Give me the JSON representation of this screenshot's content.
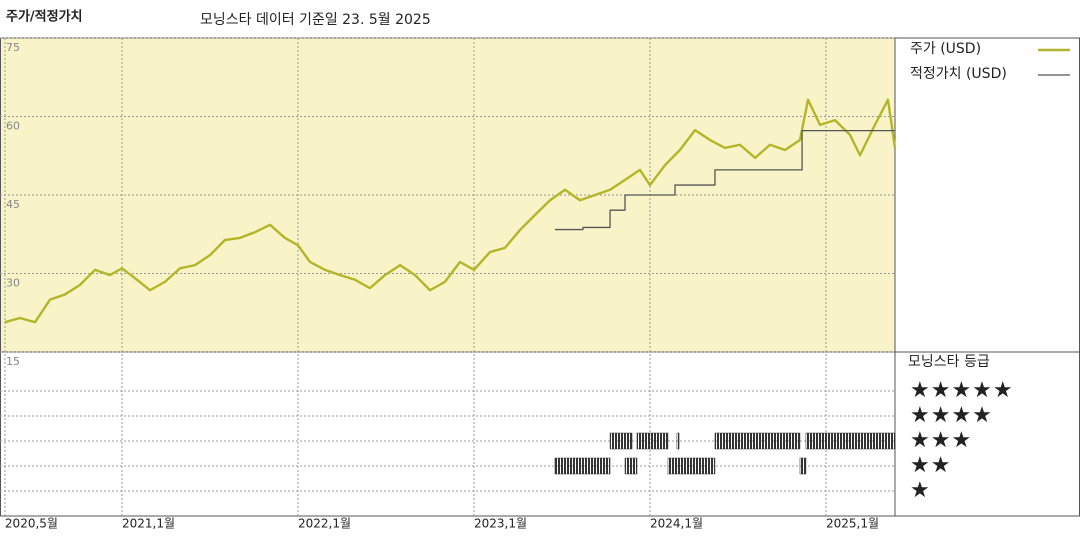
{
  "chart_data": {
    "type": "line",
    "title": "주가/적정가치",
    "subtitle": "모닝스타 데이터 기준일 23. 5월 2025",
    "xlim": [
      2020.307,
      2025.392
    ],
    "xticks": [
      {
        "value": 2020.335,
        "label": "2020,5월"
      },
      {
        "value": 2021,
        "label": "2021,1월"
      },
      {
        "value": 2022,
        "label": "2022,1월"
      },
      {
        "value": 2023,
        "label": "2023,1월"
      },
      {
        "value": 2024,
        "label": "2024,1월"
      },
      {
        "value": 2025,
        "label": "2025,1월"
      }
    ],
    "ylim": [
      15,
      75
    ],
    "yticks": [
      15,
      30,
      45,
      60,
      75
    ],
    "grid": true,
    "series": [
      {
        "name": "주가 (USD)",
        "color": "#b3b52a",
        "x": [
          2020.335,
          2020.42,
          2020.506,
          2020.591,
          2020.676,
          2020.761,
          2020.847,
          2020.932,
          2021.0,
          2021.074,
          2021.159,
          2021.244,
          2021.33,
          2021.415,
          2021.5,
          2021.585,
          2021.67,
          2021.756,
          2021.841,
          2021.926,
          2022.0,
          2022.068,
          2022.153,
          2022.239,
          2022.324,
          2022.409,
          2022.494,
          2022.58,
          2022.665,
          2022.75,
          2022.835,
          2022.92,
          2023.0,
          2023.091,
          2023.176,
          2023.261,
          2023.347,
          2023.432,
          2023.517,
          2023.602,
          2023.688,
          2023.773,
          2023.858,
          2023.943,
          2024.0,
          2024.085,
          2024.17,
          2024.256,
          2024.341,
          2024.426,
          2024.511,
          2024.597,
          2024.682,
          2024.767,
          2024.852,
          2024.898,
          2024.966,
          2025.051,
          2025.136,
          2025.193,
          2025.278,
          2025.352,
          2025.392
        ],
        "values": [
          20.7,
          21.5,
          20.7,
          25,
          26,
          27.8,
          30.7,
          29.7,
          31,
          29.1,
          26.8,
          28.4,
          31,
          31.6,
          33.5,
          36.4,
          36.8,
          37.9,
          39.3,
          36.8,
          35.4,
          32.2,
          30.7,
          29.7,
          28.8,
          27.2,
          29.7,
          31.6,
          29.7,
          26.8,
          28.4,
          32.2,
          30.7,
          34.1,
          34.9,
          38.3,
          41.2,
          44,
          46,
          44,
          45,
          46,
          47.9,
          49.8,
          46.9,
          50.7,
          53.6,
          57.4,
          55.5,
          54,
          54.6,
          52.1,
          54.6,
          53.6,
          55.5,
          63.2,
          58.4,
          59.3,
          56.5,
          52.6,
          58.4,
          63.2,
          54
        ]
      },
      {
        "name": "적정가치 (USD)",
        "color": "#555555",
        "step": "post",
        "x": [
          2023.46,
          2023.619,
          2023.773,
          2023.858,
          2024.142,
          2024.369,
          2024.864,
          2025.392
        ],
        "values": [
          38.4,
          38.8,
          42.1,
          45,
          46.9,
          49.8,
          57.3,
          57.3
        ]
      }
    ],
    "rating": {
      "title": "모닝스타 등급",
      "labels": [
        "★★★★★",
        "★★★★",
        "★★★",
        "★★",
        "★"
      ],
      "levels": [
        5,
        4,
        3,
        2,
        1
      ],
      "color": "#333333",
      "x_start": [
        2023.46,
        2023.773,
        2023.858,
        2023.926,
        2024.153,
        2024.102,
        2024.369,
        2024.852,
        2024.886
      ],
      "x_end": [
        2023.773,
        2023.898,
        2023.926,
        2024.102,
        2024.165,
        2024.369,
        2024.852,
        2024.886,
        2025.392
      ],
      "values": [
        2,
        3,
        2,
        3,
        3,
        2,
        3,
        2,
        3
      ]
    }
  }
}
